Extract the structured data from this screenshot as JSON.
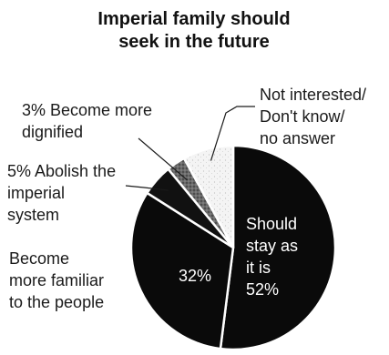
{
  "chart_data": {
    "type": "pie",
    "title_lines": [
      "Imperial family should",
      "seek in the future"
    ],
    "slices": [
      {
        "key": "stay",
        "value": 52,
        "lines": [
          "Should",
          "stay as",
          "it is",
          "52%"
        ],
        "color": "#0a0a0a"
      },
      {
        "key": "familiar",
        "value": 32,
        "percent_text": "32%",
        "lines": [
          "Become",
          "more familiar",
          "to the people"
        ],
        "color": "#0a0a0a"
      },
      {
        "key": "abolish",
        "value": 5,
        "lines": [
          "5% Abolish the",
          "imperial",
          "system"
        ],
        "color": "#111111"
      },
      {
        "key": "dignified",
        "value": 3,
        "lines": [
          "3%  Become more",
          "dignified"
        ],
        "color": "#555555"
      },
      {
        "key": "notinterested",
        "value": 8,
        "lines": [
          "Not interested/",
          "Don't know/",
          "no answer"
        ],
        "color": "#f4f4f4"
      }
    ]
  }
}
